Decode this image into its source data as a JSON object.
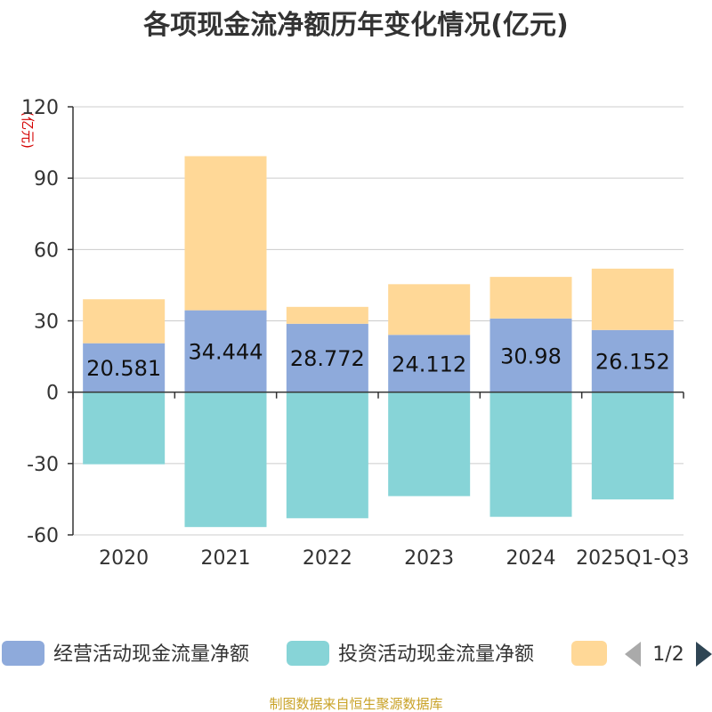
{
  "chart_data": {
    "type": "bar",
    "stacked": true,
    "title": "各项现金流净额历年变化情况(亿元)",
    "ylabel": "(亿元)",
    "ylim": [
      -60,
      120
    ],
    "yticks": [
      120,
      90,
      60,
      30,
      0,
      -30,
      -60
    ],
    "categories": [
      "2020",
      "2021",
      "2022",
      "2023",
      "2024",
      "2025Q1-Q3"
    ],
    "series": [
      {
        "name": "经营活动现金流量净额",
        "color": "#8eaadb",
        "values": [
          20.581,
          34.444,
          28.772,
          24.112,
          30.98,
          26.152
        ],
        "labels": [
          "20.581",
          "34.444",
          "28.772",
          "24.112",
          "30.98",
          "26.152"
        ]
      },
      {
        "name": "投资活动现金流量净额",
        "color": "#87d4d7",
        "values": [
          -30.3,
          -56.7,
          -53.0,
          -43.7,
          -52.4,
          -45.1
        ]
      },
      {
        "name": "",
        "color": "#ffd897",
        "values": [
          18.5,
          64.8,
          7.1,
          21.3,
          17.5,
          25.8
        ]
      }
    ],
    "legend": {
      "position": "bottom",
      "page": "1/2"
    },
    "source": "制图数据来自恒生聚源数据库"
  }
}
